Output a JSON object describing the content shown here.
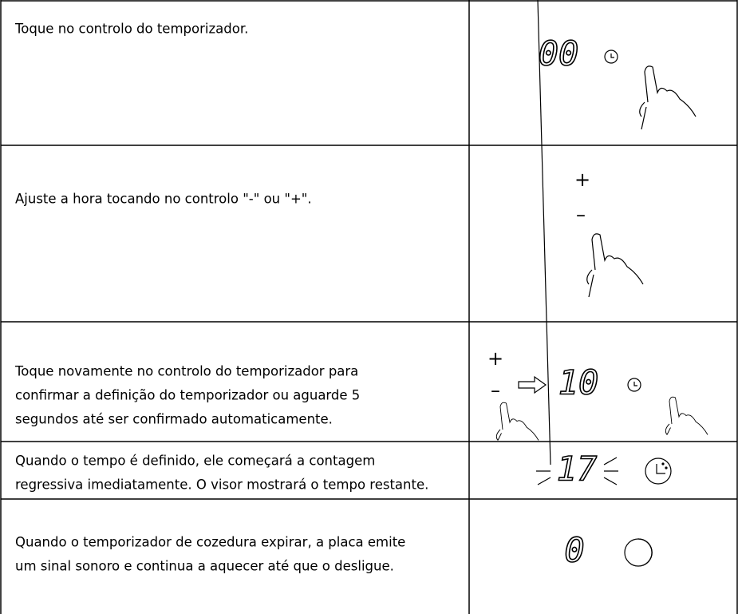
{
  "rows": [
    {
      "text": [
        "Toque no controlo do temporizador."
      ],
      "display": "00"
    },
    {
      "text": [
        "Ajuste a hora tocando no controlo \"-\" ou \"+\"."
      ],
      "plus": "+",
      "minus": "–"
    },
    {
      "text": [
        "Toque novamente no controlo do temporizador para",
        "confirmar a definição do temporizador ou aguarde 5",
        "segundos até ser confirmado automaticamente."
      ],
      "plus": "+",
      "minus": "–",
      "display": "10"
    },
    {
      "text": [
        "Quando o tempo é definido, ele começará a contagem",
        "regressiva imediatamente. O visor mostrará o tempo restante."
      ],
      "display": "17"
    },
    {
      "text": [
        "Quando o temporizador de cozedura expirar, a placa emite",
        "um sinal sonoro e continua a aquecer até que o desligue."
      ],
      "display": "0"
    }
  ]
}
